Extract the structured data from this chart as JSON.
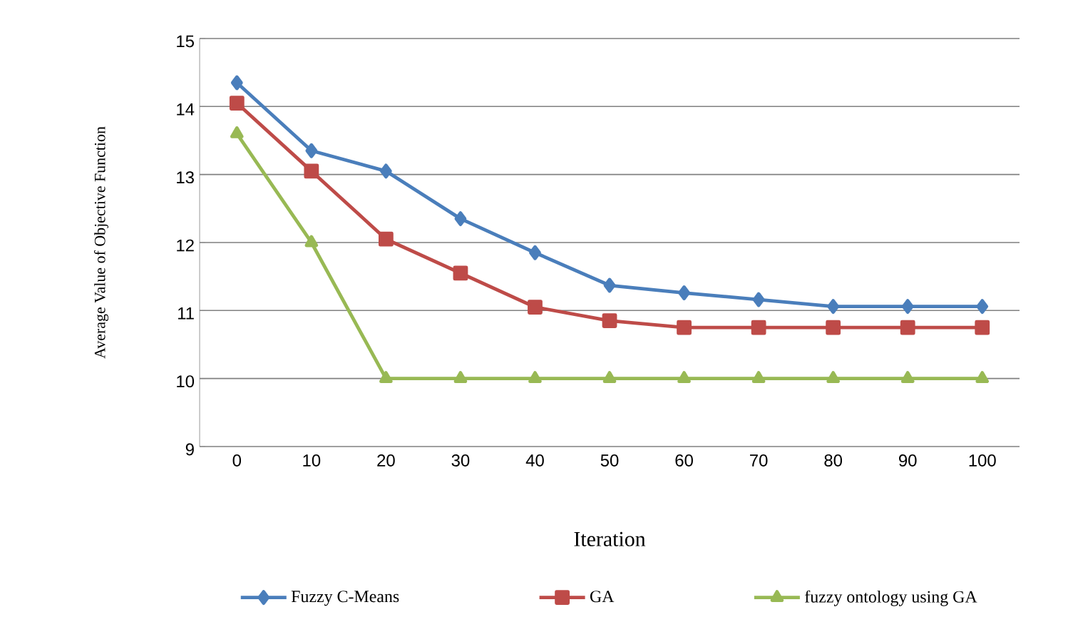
{
  "chart_data": {
    "type": "line",
    "xlabel": "Iteration",
    "ylabel": "Average Value of Objective Function",
    "categories": [
      "0",
      "10",
      "20",
      "30",
      "40",
      "50",
      "60",
      "70",
      "80",
      "90",
      "100"
    ],
    "ylim": [
      9,
      15
    ],
    "yticks": [
      9,
      10,
      11,
      12,
      13,
      14,
      15
    ],
    "grid": "y",
    "legend": "bottom",
    "line_style": "solid",
    "series": [
      {
        "name": "Fuzzy C-Means",
        "color": "#4a7ebb",
        "marker": "diamond",
        "values": [
          14.35,
          13.35,
          13.05,
          12.35,
          11.85,
          11.37,
          11.26,
          11.16,
          11.06,
          11.06,
          11.06
        ]
      },
      {
        "name": "GA",
        "color": "#be4b48",
        "marker": "square",
        "values": [
          14.05,
          13.05,
          12.05,
          11.55,
          11.05,
          10.85,
          10.75,
          10.75,
          10.75,
          10.75,
          10.75
        ]
      },
      {
        "name": "fuzzy ontology using GA",
        "color": "#98b954",
        "marker": "triangle",
        "values": [
          13.6,
          12.0,
          10.0,
          10.0,
          10.0,
          10.0,
          10.0,
          10.0,
          10.0,
          10.0,
          10.0
        ]
      }
    ]
  }
}
